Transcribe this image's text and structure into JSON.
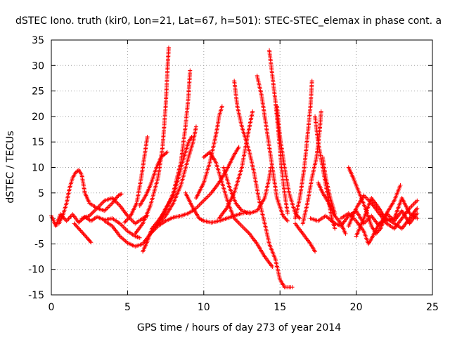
{
  "chart_data": {
    "type": "scatter",
    "title": "dSTEC Iono. truth (kir0, Lon=21, Lat=67, h=501): STEC-STEC_elemax in phase cont. a",
    "xlabel": "GPS time / hours of day 273 of year 2014",
    "ylabel": "dSTEC  / TECUs",
    "xlim": [
      0,
      25
    ],
    "ylim": [
      -15,
      35
    ],
    "xticks": [
      0,
      5,
      10,
      15,
      20,
      25
    ],
    "yticks": [
      -15,
      -10,
      -5,
      0,
      5,
      10,
      15,
      20,
      25,
      30,
      35
    ],
    "grid": true,
    "marker": "+",
    "color": "#ff0000",
    "arcs": [
      [
        [
          0.0,
          0.5
        ],
        [
          0.3,
          -1.5
        ],
        [
          0.6,
          0.8
        ],
        [
          1.0,
          -0.5
        ],
        [
          1.4,
          0.8
        ],
        [
          1.8,
          -0.8
        ],
        [
          2.2,
          0.3
        ],
        [
          2.6,
          -0.5
        ],
        [
          3.0,
          0.3
        ],
        [
          3.5,
          -0.3
        ],
        [
          4.0,
          0.0
        ],
        [
          4.5,
          -1.0
        ],
        [
          5.0,
          -2.5
        ],
        [
          5.5,
          -3.5
        ],
        [
          5.8,
          -3.8
        ]
      ],
      [
        [
          0.5,
          -1.0
        ],
        [
          0.8,
          1.0
        ],
        [
          1.0,
          3.0
        ],
        [
          1.2,
          6.0
        ],
        [
          1.4,
          8.0
        ],
        [
          1.6,
          9.0
        ],
        [
          1.8,
          9.5
        ],
        [
          2.0,
          8.5
        ],
        [
          2.2,
          5.0
        ],
        [
          2.5,
          3.0
        ],
        [
          3.0,
          2.0
        ],
        [
          3.5,
          1.5
        ],
        [
          4.0,
          3.0
        ],
        [
          4.4,
          4.5
        ],
        [
          4.6,
          4.8
        ]
      ],
      [
        [
          1.5,
          -1.0
        ],
        [
          1.8,
          -2.0
        ],
        [
          2.1,
          -3.0
        ],
        [
          2.4,
          -4.0
        ],
        [
          2.6,
          -4.7
        ]
      ],
      [
        [
          2.0,
          0.0
        ],
        [
          2.5,
          0.5
        ],
        [
          3.0,
          2.0
        ],
        [
          3.5,
          3.5
        ],
        [
          4.0,
          4.0
        ],
        [
          4.5,
          2.5
        ],
        [
          5.0,
          0.5
        ],
        [
          5.5,
          -1.0
        ],
        [
          6.0,
          0.0
        ],
        [
          6.3,
          0.5
        ]
      ],
      [
        [
          3.5,
          -0.5
        ],
        [
          4.0,
          -1.5
        ],
        [
          4.5,
          -3.5
        ],
        [
          5.0,
          -4.8
        ],
        [
          5.5,
          -5.5
        ],
        [
          6.0,
          -5.0
        ],
        [
          6.5,
          -3.0
        ],
        [
          7.0,
          -1.5
        ],
        [
          7.5,
          -0.5
        ],
        [
          8.0,
          0.2
        ],
        [
          8.5,
          0.5
        ],
        [
          9.0,
          1.0
        ],
        [
          9.5,
          2.0
        ],
        [
          10.0,
          3.5
        ],
        [
          10.5,
          5.0
        ],
        [
          11.0,
          7.0
        ],
        [
          11.5,
          9.5
        ],
        [
          12.0,
          12.5
        ],
        [
          12.3,
          14.0
        ]
      ],
      [
        [
          4.8,
          -0.8
        ],
        [
          5.2,
          0.5
        ],
        [
          5.6,
          3.0
        ],
        [
          5.9,
          8.0
        ],
        [
          6.1,
          12.0
        ],
        [
          6.2,
          14.0
        ],
        [
          6.3,
          16.0
        ]
      ],
      [
        [
          5.5,
          -3.0
        ],
        [
          6.0,
          -1.0
        ],
        [
          6.5,
          2.5
        ],
        [
          7.0,
          8.0
        ],
        [
          7.3,
          14.0
        ],
        [
          7.5,
          22.0
        ],
        [
          7.6,
          28.0
        ],
        [
          7.7,
          33.5
        ]
      ],
      [
        [
          6.0,
          -6.5
        ],
        [
          6.3,
          -4.5
        ],
        [
          6.6,
          -2.0
        ],
        [
          7.0,
          -0.5
        ],
        [
          7.5,
          1.5
        ],
        [
          8.0,
          5.0
        ],
        [
          8.5,
          11.0
        ],
        [
          8.8,
          18.0
        ],
        [
          9.0,
          24.0
        ],
        [
          9.1,
          29.0
        ]
      ],
      [
        [
          5.8,
          2.5
        ],
        [
          6.2,
          4.5
        ],
        [
          6.5,
          6.5
        ],
        [
          6.9,
          10.0
        ],
        [
          7.2,
          12.0
        ],
        [
          7.6,
          13.0
        ]
      ],
      [
        [
          6.5,
          -3.0
        ],
        [
          7.0,
          -1.0
        ],
        [
          7.5,
          2.0
        ],
        [
          8.0,
          4.5
        ],
        [
          8.3,
          7.5
        ],
        [
          8.6,
          11.0
        ],
        [
          8.9,
          14.0
        ],
        [
          9.0,
          15.0
        ],
        [
          9.2,
          16.0
        ]
      ],
      [
        [
          7.0,
          -1.2
        ],
        [
          7.5,
          0.5
        ],
        [
          8.0,
          3.0
        ],
        [
          8.5,
          6.5
        ],
        [
          9.0,
          12.0
        ],
        [
          9.3,
          15.0
        ],
        [
          9.5,
          18.0
        ]
      ],
      [
        [
          8.8,
          5.0
        ],
        [
          9.3,
          2.0
        ],
        [
          9.7,
          0.0
        ],
        [
          10.0,
          -0.5
        ],
        [
          10.5,
          -0.8
        ],
        [
          11.0,
          -0.5
        ],
        [
          11.5,
          0.0
        ],
        [
          12.0,
          0.5
        ],
        [
          12.5,
          1.0
        ],
        [
          13.0,
          1.2
        ]
      ],
      [
        [
          9.5,
          4.0
        ],
        [
          10.0,
          7.0
        ],
        [
          10.4,
          11.0
        ],
        [
          10.7,
          15.0
        ],
        [
          10.9,
          18.0
        ],
        [
          11.0,
          20.0
        ],
        [
          11.2,
          22.0
        ]
      ],
      [
        [
          10.0,
          12.0
        ],
        [
          10.4,
          13.0
        ],
        [
          10.8,
          11.0
        ],
        [
          11.2,
          7.0
        ],
        [
          11.6,
          3.0
        ],
        [
          12.0,
          0.0
        ],
        [
          12.5,
          -1.5
        ],
        [
          13.0,
          -3.0
        ],
        [
          13.5,
          -5.0
        ],
        [
          14.0,
          -7.5
        ],
        [
          14.5,
          -9.5
        ]
      ],
      [
        [
          11.0,
          0.0
        ],
        [
          11.5,
          2.0
        ],
        [
          12.0,
          5.0
        ],
        [
          12.5,
          10.0
        ],
        [
          12.8,
          15.0
        ],
        [
          13.0,
          18.0
        ],
        [
          13.2,
          21.0
        ]
      ],
      [
        [
          11.3,
          10.0
        ],
        [
          11.7,
          6.0
        ],
        [
          12.1,
          3.0
        ],
        [
          12.5,
          1.5
        ],
        [
          13.0,
          1.0
        ],
        [
          13.5,
          1.5
        ],
        [
          14.0,
          4.0
        ],
        [
          14.3,
          8.0
        ],
        [
          14.4,
          10.0
        ]
      ],
      [
        [
          12.0,
          27.0
        ],
        [
          12.2,
          22.0
        ],
        [
          12.5,
          18.0
        ],
        [
          12.8,
          15.0
        ],
        [
          13.0,
          13.0
        ],
        [
          13.3,
          9.0
        ],
        [
          13.6,
          4.0
        ],
        [
          14.0,
          -1.0
        ],
        [
          14.3,
          -5.0
        ],
        [
          14.7,
          -8.0
        ],
        [
          15.0,
          -12.0
        ],
        [
          15.3,
          -13.5
        ],
        [
          15.8,
          -13.5
        ]
      ],
      [
        [
          13.5,
          28.0
        ],
        [
          13.8,
          24.0
        ],
        [
          14.0,
          20.0
        ],
        [
          14.2,
          16.0
        ],
        [
          14.5,
          10.0
        ],
        [
          14.8,
          4.0
        ],
        [
          15.2,
          0.5
        ],
        [
          15.5,
          -0.5
        ]
      ],
      [
        [
          14.3,
          33.0
        ],
        [
          14.5,
          28.0
        ],
        [
          14.7,
          23.0
        ],
        [
          14.9,
          17.0
        ],
        [
          15.1,
          10.0
        ],
        [
          15.3,
          5.0
        ],
        [
          15.5,
          1.0
        ]
      ],
      [
        [
          14.8,
          22.0
        ],
        [
          15.0,
          16.0
        ],
        [
          15.3,
          10.0
        ],
        [
          15.6,
          5.0
        ],
        [
          16.0,
          1.0
        ],
        [
          16.3,
          0.0
        ]
      ],
      [
        [
          16.0,
          0.0
        ],
        [
          16.3,
          4.0
        ],
        [
          16.6,
          10.0
        ],
        [
          16.8,
          16.0
        ],
        [
          17.0,
          22.0
        ],
        [
          17.1,
          27.0
        ]
      ],
      [
        [
          16.5,
          -1.0
        ],
        [
          16.8,
          3.0
        ],
        [
          17.1,
          8.0
        ],
        [
          17.4,
          12.0
        ],
        [
          17.6,
          17.0
        ],
        [
          17.7,
          21.0
        ]
      ],
      [
        [
          17.3,
          20.0
        ],
        [
          17.5,
          15.0
        ],
        [
          17.8,
          10.0
        ],
        [
          18.1,
          5.0
        ],
        [
          18.4,
          0.0
        ],
        [
          18.6,
          -2.0
        ]
      ],
      [
        [
          17.5,
          7.0
        ],
        [
          17.8,
          5.0
        ],
        [
          18.2,
          3.0
        ],
        [
          18.6,
          0.5
        ],
        [
          19.0,
          -1.0
        ],
        [
          19.3,
          -3.0
        ]
      ],
      [
        [
          17.8,
          12.0
        ],
        [
          18.0,
          8.0
        ],
        [
          18.3,
          4.0
        ],
        [
          18.6,
          1.0
        ]
      ],
      [
        [
          16.0,
          -1.0
        ],
        [
          16.5,
          -3.0
        ],
        [
          17.0,
          -5.0
        ],
        [
          17.3,
          -6.5
        ]
      ],
      [
        [
          19.5,
          10.0
        ],
        [
          19.8,
          8.0
        ],
        [
          20.2,
          5.0
        ],
        [
          20.6,
          2.0
        ],
        [
          21.0,
          -1.5
        ],
        [
          21.3,
          -3.0
        ],
        [
          21.6,
          -2.0
        ],
        [
          22.0,
          1.0
        ],
        [
          22.5,
          3.5
        ],
        [
          22.9,
          6.5
        ]
      ],
      [
        [
          19.5,
          -1.5
        ],
        [
          20.0,
          2.0
        ],
        [
          20.5,
          4.5
        ],
        [
          21.0,
          3.0
        ],
        [
          21.5,
          1.0
        ],
        [
          22.0,
          -1.0
        ],
        [
          22.5,
          -2.0
        ],
        [
          23.0,
          0.0
        ],
        [
          23.5,
          2.0
        ],
        [
          24.0,
          3.5
        ]
      ],
      [
        [
          20.0,
          -3.5
        ],
        [
          20.5,
          0.0
        ],
        [
          21.0,
          4.0
        ],
        [
          21.5,
          2.0
        ],
        [
          22.0,
          -0.5
        ],
        [
          22.5,
          0.0
        ],
        [
          23.0,
          4.0
        ],
        [
          23.5,
          1.0
        ],
        [
          24.0,
          0.0
        ]
      ],
      [
        [
          19.0,
          0.0
        ],
        [
          19.5,
          1.0
        ],
        [
          20.0,
          -0.5
        ],
        [
          20.5,
          -2.5
        ],
        [
          20.8,
          -5.0
        ],
        [
          21.0,
          -4.0
        ],
        [
          21.5,
          -1.0
        ],
        [
          22.0,
          0.0
        ],
        [
          22.5,
          -1.0
        ],
        [
          23.0,
          -2.0
        ],
        [
          23.5,
          0.0
        ],
        [
          24.0,
          2.0
        ]
      ],
      [
        [
          17.0,
          0.0
        ],
        [
          17.5,
          -0.5
        ],
        [
          18.0,
          0.5
        ],
        [
          18.5,
          -0.8
        ],
        [
          19.0,
          -1.5
        ],
        [
          19.5,
          0.5
        ],
        [
          20.0,
          1.5
        ],
        [
          20.5,
          -1.0
        ],
        [
          21.0,
          0.5
        ],
        [
          21.5,
          -1.5
        ],
        [
          22.0,
          1.0
        ],
        [
          22.5,
          -0.5
        ],
        [
          23.0,
          1.5
        ],
        [
          23.5,
          -1.0
        ],
        [
          24.0,
          1.0
        ]
      ]
    ]
  }
}
